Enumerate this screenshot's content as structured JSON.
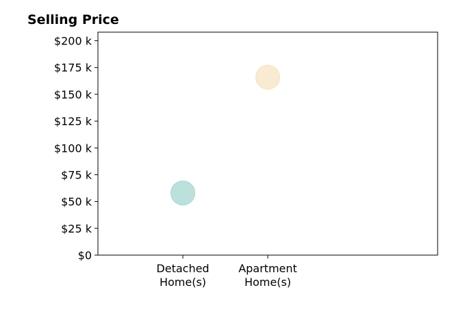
{
  "chart_data": {
    "type": "scatter",
    "title": "Selling Price",
    "xlabel": "",
    "ylabel": "",
    "categories": [
      "Detached\nHome(s)",
      "Apartment\nHome(s)"
    ],
    "y_ticks": [
      0,
      25000,
      50000,
      75000,
      100000,
      125000,
      150000,
      175000,
      200000
    ],
    "y_tick_labels": [
      "$0",
      "$25 k",
      "$50 k",
      "$75 k",
      "$100 k",
      "$125 k",
      "$150 k",
      "$175 k",
      "$200 k"
    ],
    "ylim": [
      0,
      208000
    ],
    "grid": false,
    "points": [
      {
        "category": "Detached\nHome(s)",
        "value": 58000,
        "color": "#9fd4cf"
      },
      {
        "category": "Apartment\nHome(s)",
        "value": 166000,
        "color": "#f5e2bd"
      }
    ]
  }
}
